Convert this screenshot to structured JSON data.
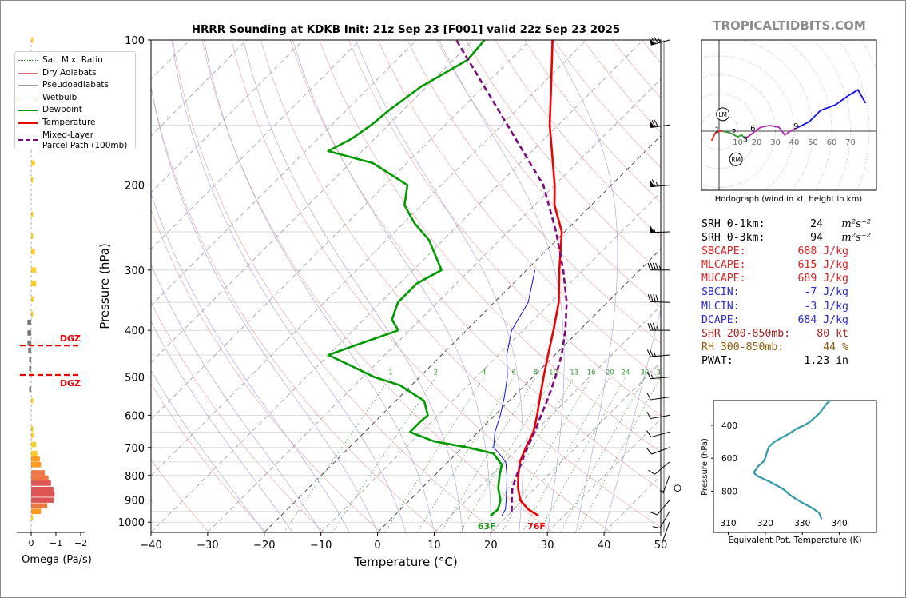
{
  "title": "HRRR Sounding at KDKB Init: 21z Sep 23 [F001] valid 22z Sep 23 2025",
  "watermark": "TROPICALTIDBITS.COM",
  "legend": [
    {
      "label": "Sat. Mix. Ratio",
      "color": "#2e7d2e",
      "style": "dotted"
    },
    {
      "label": "Dry Adiabats",
      "color": "#e07070",
      "style": "solid"
    },
    {
      "label": "Pseudoadiabats",
      "color": "#9a9a9a",
      "style": "solid"
    },
    {
      "label": "Wetbulb",
      "color": "#1010e0",
      "style": "solid"
    },
    {
      "label": "Dewpoint",
      "color": "#009900",
      "style": "thick"
    },
    {
      "label": "Temperature",
      "color": "#ee0000",
      "style": "thick"
    },
    {
      "label": "Mixed-Layer\nParcel Path (100mb)",
      "color": "#7a0a7a",
      "style": "dashed"
    }
  ],
  "skewt": {
    "ylabel": "Pressure (hPa)",
    "xlabel": "Temperature (°C)",
    "pressure_ticks": [
      100,
      200,
      300,
      400,
      500,
      600,
      700,
      800,
      900,
      1000
    ],
    "temp_ticks": [
      -40,
      -30,
      -20,
      -10,
      0,
      10,
      20,
      30,
      40,
      50
    ],
    "xlim": [
      -40,
      50
    ],
    "plim": [
      1050,
      100
    ],
    "mixing_ratio_labels": [
      "1",
      "2",
      "4",
      "6",
      "8",
      "10",
      "13",
      "16",
      "20",
      "24",
      "30",
      "36"
    ],
    "surface_dewpoint_label": "63F",
    "surface_temp_label": "76F"
  },
  "chart_data": [
    {
      "type": "line",
      "title": "HRRR Sounding at KDKB Init: 21z Sep 23 [F001] valid 22z Sep 23 2025",
      "xlabel": "Temperature (°C)",
      "ylabel": "Pressure (hPa)",
      "xlim": [
        -40,
        50
      ],
      "ylim": [
        1050,
        100
      ],
      "y_scale": "log",
      "skew": "skew-T",
      "series": [
        {
          "name": "Temperature",
          "color": "#ee0000",
          "p": [
            970,
            940,
            900,
            850,
            800,
            750,
            700,
            650,
            600,
            550,
            500,
            450,
            400,
            350,
            300,
            250,
            220,
            200,
            150,
            125,
            100
          ],
          "t": [
            25.5,
            22.5,
            19.5,
            17.0,
            14.8,
            12.7,
            11.2,
            9.8,
            7.5,
            4.8,
            1.9,
            -1.2,
            -4.6,
            -8.6,
            -14.2,
            -20.5,
            -26.5,
            -30.0,
            -41.5,
            -48.0,
            -56.0
          ]
        },
        {
          "name": "Dewpoint",
          "color": "#009900",
          "p": [
            970,
            940,
            900,
            850,
            800,
            760,
            720,
            700,
            680,
            650,
            620,
            600,
            560,
            520,
            500,
            470,
            450,
            430,
            400,
            380,
            350,
            320,
            300,
            260,
            240,
            220,
            200,
            180,
            170,
            160,
            150,
            140,
            125,
            110,
            100
          ],
          "t": [
            17.0,
            17.2,
            16.0,
            13.5,
            11.5,
            10.0,
            6.5,
            1.0,
            -6.0,
            -12.0,
            -12.0,
            -11.8,
            -15.0,
            -22.0,
            -28.0,
            -35.0,
            -40.0,
            -37.0,
            -32.0,
            -35.0,
            -37.0,
            -37.0,
            -35.0,
            -42.5,
            -48.0,
            -53.0,
            -56.0,
            -66.0,
            -76.0,
            -74.0,
            -73.0,
            -72.5,
            -71.0,
            -67.5,
            -68.0
          ]
        },
        {
          "name": "Wetbulb",
          "color": "#1010e0",
          "p": [
            970,
            940,
            900,
            850,
            800,
            750,
            720,
            700,
            650,
            600,
            550,
            500,
            450,
            400,
            350,
            300
          ],
          "t": [
            19.0,
            18.5,
            17.0,
            15.0,
            12.8,
            10.2,
            7.5,
            5.5,
            3.0,
            1.0,
            -1.5,
            -4.5,
            -8.5,
            -12.0,
            -14.0,
            -18.5
          ]
        },
        {
          "name": "Mixed-Layer Parcel Path (100mb)",
          "color": "#7a0a7a",
          "p": [
            950,
            900,
            850,
            800,
            750,
            700,
            650,
            600,
            550,
            500,
            450,
            400,
            350,
            300,
            250,
            200,
            150,
            100
          ],
          "t": [
            20.0,
            18.0,
            16.0,
            14.5,
            13.0,
            11.5,
            10.0,
            8.2,
            6.3,
            4.0,
            1.2,
            -2.5,
            -7.2,
            -13.5,
            -21.5,
            -32.0,
            -49.0,
            -73.0
          ]
        }
      ]
    },
    {
      "type": "line",
      "title": "Omega (Pa/s)",
      "xlabel": "Omega (Pa/s)",
      "xlim": [
        0,
        -2
      ],
      "x_ticks": [
        0,
        -1,
        -2
      ],
      "dgz_levels_hpa": [
        430,
        495
      ],
      "dgz_label": "DGZ",
      "bars": [
        {
          "p": 100,
          "omega": -0.05
        },
        {
          "p": 135,
          "omega": -0.15
        },
        {
          "p": 165,
          "omega": -0.15
        },
        {
          "p": 180,
          "omega": -0.15
        },
        {
          "p": 195,
          "omega": -0.05
        },
        {
          "p": 230,
          "omega": -0.03
        },
        {
          "p": 255,
          "omega": -0.03
        },
        {
          "p": 275,
          "omega": -0.15
        },
        {
          "p": 300,
          "omega": -0.2
        },
        {
          "p": 320,
          "omega": -0.2
        },
        {
          "p": 345,
          "omega": -0.1
        },
        {
          "p": 370,
          "omega": -0.05
        },
        {
          "p": 385,
          "omega": 0.15
        },
        {
          "p": 405,
          "omega": 0.15
        },
        {
          "p": 425,
          "omega": 0.15
        },
        {
          "p": 440,
          "omega": 0.12
        },
        {
          "p": 460,
          "omega": 0.05
        },
        {
          "p": 480,
          "omega": 0.03
        },
        {
          "p": 530,
          "omega": 0.02
        },
        {
          "p": 560,
          "omega": -0.02
        },
        {
          "p": 640,
          "omega": -0.05
        },
        {
          "p": 660,
          "omega": -0.1
        },
        {
          "p": 690,
          "omega": -0.2
        },
        {
          "p": 720,
          "omega": -0.25
        },
        {
          "p": 740,
          "omega": -0.35
        },
        {
          "p": 760,
          "omega": -0.4
        },
        {
          "p": 790,
          "omega": -0.55
        },
        {
          "p": 810,
          "omega": -0.7
        },
        {
          "p": 830,
          "omega": -0.8
        },
        {
          "p": 855,
          "omega": -0.9
        },
        {
          "p": 875,
          "omega": -0.95
        },
        {
          "p": 900,
          "omega": -0.9
        },
        {
          "p": 925,
          "omega": -0.65
        },
        {
          "p": 950,
          "omega": -0.4
        },
        {
          "p": 980,
          "omega": -0.05
        }
      ]
    },
    {
      "type": "line",
      "title": "Hodograph (wind in kt, height in km)",
      "xlabel": "Hodograph (wind in kt, height in km)",
      "ring_labels": [
        "10",
        "20",
        "30",
        "40",
        "50",
        "60",
        "70"
      ],
      "storm_motion_labels": [
        "LM",
        "RM"
      ],
      "lm_uv": [
        2,
        9
      ],
      "rm_uv": [
        9,
        -15
      ],
      "segments": [
        {
          "color": "#ee2222",
          "points": [
            [
              -4,
              -5
            ],
            [
              -2,
              -1
            ],
            [
              0,
              0
            ],
            [
              2,
              0
            ]
          ]
        },
        {
          "color": "#2a9a2a",
          "points": [
            [
              2,
              0
            ],
            [
              6,
              -1
            ],
            [
              10,
              -3
            ],
            [
              12,
              -2
            ],
            [
              14,
              -4
            ]
          ]
        },
        {
          "color": "#b02ab0",
          "points": [
            [
              14,
              -4
            ],
            [
              18,
              -1
            ],
            [
              22,
              2
            ],
            [
              27,
              3
            ],
            [
              32,
              2
            ],
            [
              35,
              -2
            ],
            [
              38,
              0
            ],
            [
              42,
              2
            ]
          ]
        },
        {
          "color": "#1010ee",
          "points": [
            [
              42,
              2
            ],
            [
              48,
              5
            ],
            [
              54,
              11
            ],
            [
              62,
              14
            ],
            [
              69,
              19
            ],
            [
              74,
              22
            ],
            [
              78,
              15
            ]
          ]
        }
      ],
      "height_labels": [
        {
          "text": "1",
          "u": -1,
          "v": 1
        },
        {
          "text": "2",
          "u": 8,
          "v": 0
        },
        {
          "text": "3",
          "u": 14,
          "v": -4
        },
        {
          "text": "6",
          "u": 18,
          "v": 2
        },
        {
          "text": "9",
          "u": 41,
          "v": 3
        }
      ]
    },
    {
      "type": "line",
      "title": "Equivalent Pot. Temperature (K)",
      "xlabel": "Equivalent Pot. Temperature (K)",
      "ylabel": "Pressure (hPa)",
      "xlim": [
        306,
        350
      ],
      "ylim": [
        1050,
        250
      ],
      "x_ticks": [
        310,
        320,
        330,
        340
      ],
      "y_ticks": [
        400,
        600,
        800
      ],
      "series": [
        {
          "name": "Theta-e",
          "color": "#3399aa",
          "p": [
            970,
            930,
            900,
            870,
            850,
            820,
            790,
            770,
            740,
            720,
            710,
            700,
            690,
            680,
            670,
            650,
            620,
            600,
            560,
            530,
            500,
            480,
            450,
            420,
            400,
            380,
            350,
            330,
            300,
            270,
            250
          ],
          "thetae": [
            335.2,
            334.5,
            332.5,
            330.0,
            328.5,
            326.5,
            325.0,
            323.5,
            321.0,
            319.0,
            318.0,
            317.5,
            317.0,
            317.0,
            317.5,
            318.0,
            319.5,
            320.0,
            320.5,
            321.0,
            322.5,
            324.0,
            326.5,
            328.5,
            330.5,
            332.0,
            333.5,
            334.5,
            335.5,
            336.5,
            337.5
          ]
        }
      ]
    }
  ],
  "winds": [
    {
      "p": 100,
      "dir": 255,
      "kt": 75
    },
    {
      "p": 150,
      "dir": 262,
      "kt": 70
    },
    {
      "p": 200,
      "dir": 265,
      "kt": 65
    },
    {
      "p": 250,
      "dir": 268,
      "kt": 55
    },
    {
      "p": 300,
      "dir": 270,
      "kt": 45
    },
    {
      "p": 350,
      "dir": 272,
      "kt": 40
    },
    {
      "p": 400,
      "dir": 270,
      "kt": 35
    },
    {
      "p": 450,
      "dir": 265,
      "kt": 25
    },
    {
      "p": 500,
      "dir": 265,
      "kt": 15
    },
    {
      "p": 550,
      "dir": 262,
      "kt": 12
    },
    {
      "p": 600,
      "dir": 260,
      "kt": 10
    },
    {
      "p": 650,
      "dir": 255,
      "kt": 10
    },
    {
      "p": 700,
      "dir": 250,
      "kt": 10
    },
    {
      "p": 750,
      "dir": 230,
      "kt": 8
    },
    {
      "p": 800,
      "dir": 200,
      "kt": 5
    },
    {
      "p": 850,
      "dir": 0,
      "kt": 0
    },
    {
      "p": 900,
      "dir": 220,
      "kt": 10
    },
    {
      "p": 950,
      "dir": 210,
      "kt": 10
    },
    {
      "p": 1000,
      "dir": 200,
      "kt": 8
    }
  ],
  "stats": [
    {
      "label": "SRH 0-1km:",
      "value": "24",
      "unit": "m²s⁻²",
      "color": "#000000"
    },
    {
      "label": "SRH 0-3km:",
      "value": "94",
      "unit": "m²s⁻²",
      "color": "#000000"
    },
    {
      "label": "SBCAPE:",
      "value": "688 J/kg",
      "unit": "",
      "color": "#dd2222"
    },
    {
      "label": "MLCAPE:",
      "value": "615 J/kg",
      "unit": "",
      "color": "#dd2222"
    },
    {
      "label": "MUCAPE:",
      "value": "689 J/kg",
      "unit": "",
      "color": "#dd2222"
    },
    {
      "label": "SBCIN:",
      "value": "-7 J/kg",
      "unit": "",
      "color": "#2a2ad0"
    },
    {
      "label": "MLCIN:",
      "value": "-3 J/kg",
      "unit": "",
      "color": "#2a2ad0"
    },
    {
      "label": "DCAPE:",
      "value": "684 J/kg",
      "unit": "",
      "color": "#2a2ad0"
    },
    {
      "label": "SHR 200-850mb:",
      "value": "80 kt",
      "unit": "",
      "color": "#aa2222"
    },
    {
      "label": "RH 300-850mb:",
      "value": "44 %",
      "unit": "",
      "color": "#8a6010"
    },
    {
      "label": "PWAT:",
      "value": "1.23 in",
      "unit": "",
      "color": "#000000"
    }
  ]
}
